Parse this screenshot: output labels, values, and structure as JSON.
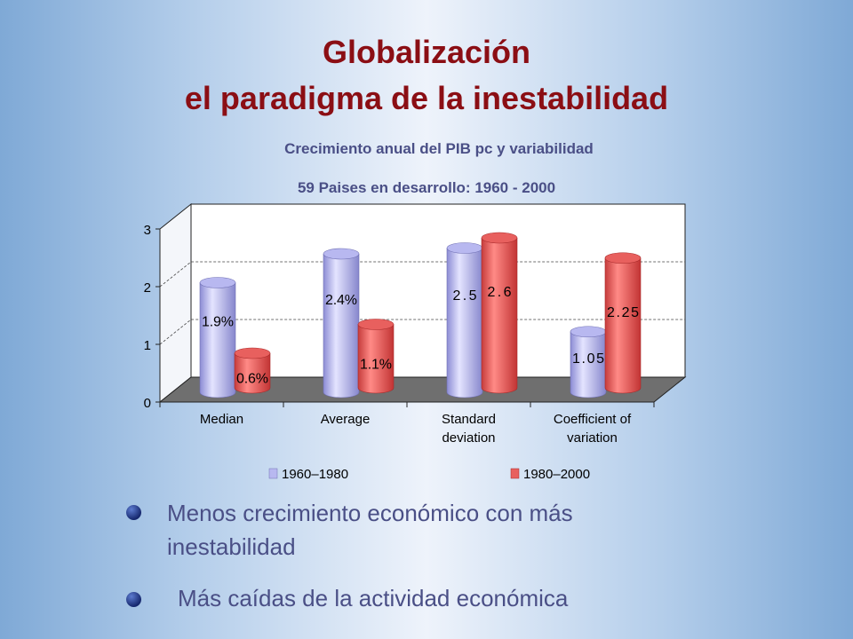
{
  "slide": {
    "title_line1": "Globalización",
    "title_line2": "el paradigma de la inestabilidad",
    "bullets": [
      {
        "line1": "Menos crecimiento económico con  más",
        "line2": "inestabilidad"
      },
      {
        "line1": "Más caídas de la actividad económica"
      }
    ]
  },
  "colors": {
    "title": "#8b0e14",
    "subtitle": "#4a4f86",
    "series_1960_1980": "#b8b8f0",
    "series_1980_2000": "#e8605e"
  },
  "chart_data": {
    "type": "bar",
    "title": "Crecimiento anual del PIB pc y variabilidad",
    "subtitle": "59 Paises en desarrollo: 1960 - 2000",
    "categories": [
      [
        "Median"
      ],
      [
        "Average"
      ],
      [
        "Standard",
        "deviation"
      ],
      [
        "Coefficient of",
        "variation"
      ]
    ],
    "series": [
      {
        "name": "1960–1980",
        "values": [
          1.9,
          2.4,
          2.5,
          1.05
        ],
        "labels": [
          "1.9%",
          "2.4%",
          "2.5",
          "1.05"
        ]
      },
      {
        "name": "1980–2000",
        "values": [
          0.6,
          1.1,
          2.6,
          2.25
        ],
        "labels": [
          "0.6%",
          "1.1%",
          "2.6",
          "2.25"
        ]
      }
    ],
    "ylim": [
      0,
      3
    ],
    "yticks": [
      "0",
      "1",
      "2",
      "3"
    ],
    "grid": true,
    "legend_position": "bottom"
  }
}
